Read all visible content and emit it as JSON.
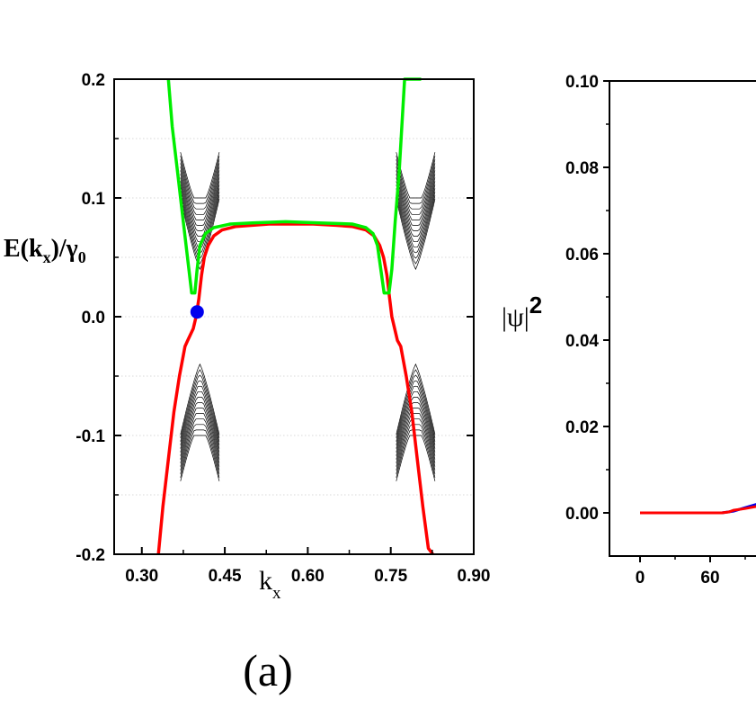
{
  "chart_data": [
    {
      "panel": "(a)",
      "type": "line",
      "xlabel": "k",
      "xlabel_sub": "x",
      "ylabel_parts": {
        "a": "E(k",
        "sub1": "x",
        "b": ")/γ",
        "sub2": "0"
      },
      "xlim": [
        0.25,
        0.9
      ],
      "ylim": [
        -0.2,
        0.2
      ],
      "xticks": [
        0.3,
        0.45,
        0.6,
        0.75,
        0.9
      ],
      "xtick_labels": [
        "0.30",
        "0.45",
        "0.60",
        "0.75",
        "0.90"
      ],
      "yticks": [
        0.2,
        0.1,
        0.0,
        -0.1,
        -0.2
      ],
      "ytick_labels": [
        "0.2",
        "0.1",
        "0.0",
        "-0.1",
        "-0.2"
      ],
      "grid": true,
      "series": [
        {
          "color": "#ff0000",
          "x": [
            0.33,
            0.338,
            0.348,
            0.358,
            0.368,
            0.378,
            0.383,
            0.393,
            0.398,
            0.403,
            0.408,
            0.413,
            0.42,
            0.43,
            0.445,
            0.47,
            0.5,
            0.53,
            0.57,
            0.61,
            0.65,
            0.68,
            0.705,
            0.72,
            0.73,
            0.737,
            0.743,
            0.748,
            0.752,
            0.757,
            0.762,
            0.768,
            0.778,
            0.788,
            0.798,
            0.808,
            0.818,
            0.826
          ],
          "y": [
            -0.2,
            -0.16,
            -0.12,
            -0.08,
            -0.05,
            -0.025,
            -0.02,
            -0.01,
            0.0,
            0.015,
            0.035,
            0.05,
            0.06,
            0.068,
            0.073,
            0.076,
            0.077,
            0.078,
            0.078,
            0.078,
            0.077,
            0.076,
            0.073,
            0.068,
            0.06,
            0.05,
            0.035,
            0.015,
            0.0,
            -0.01,
            -0.02,
            -0.025,
            -0.05,
            -0.08,
            -0.12,
            -0.16,
            -0.195,
            -0.2
          ]
        },
        {
          "color": "#00ee00",
          "x": [
            0.348,
            0.355,
            0.365,
            0.375,
            0.385,
            0.39,
            0.392,
            0.396,
            0.4,
            0.405,
            0.415,
            0.43,
            0.46,
            0.5,
            0.56,
            0.62,
            0.68,
            0.705,
            0.718,
            0.726,
            0.732,
            0.738,
            0.742,
            0.747,
            0.752,
            0.758,
            0.765,
            0.77,
            0.775,
            0.785,
            0.795,
            0.805
          ],
          "y": [
            0.2,
            0.16,
            0.12,
            0.08,
            0.04,
            0.02,
            0.02,
            0.02,
            0.04,
            0.06,
            0.07,
            0.075,
            0.078,
            0.079,
            0.08,
            0.079,
            0.078,
            0.075,
            0.07,
            0.06,
            0.04,
            0.02,
            0.02,
            0.02,
            0.04,
            0.08,
            0.12,
            0.16,
            0.2,
            0.2,
            0.2,
            0.2
          ]
        }
      ],
      "marker": {
        "x": 0.4,
        "y": 0.004,
        "color": "#0000ee"
      }
    },
    {
      "type": "line",
      "ylabel": "|ψ|",
      "ylabel_sup": "2",
      "yticks": [
        0.1,
        0.08,
        0.06,
        0.04,
        0.02,
        0.0
      ],
      "ytick_labels": [
        "0.10",
        "0.08",
        "0.06",
        "0.04",
        "0.02",
        "0.00"
      ],
      "xticks": [
        0,
        60
      ],
      "xtick_labels": [
        "0",
        "60"
      ],
      "ylim": [
        -0.01,
        0.1
      ],
      "series": [
        {
          "color": "#ff0000",
          "x": [
            0,
            20,
            40,
            60,
            70,
            76,
            80,
            90,
            100
          ],
          "y": [
            0.0,
            0.0,
            0.0,
            0.0,
            0.0,
            0.0002,
            0.0006,
            0.001,
            0.0015
          ]
        },
        {
          "color": "#0000ee",
          "x": [
            70,
            80,
            90,
            100
          ],
          "y": [
            0.0,
            0.0004,
            0.0012,
            0.002
          ]
        }
      ]
    }
  ]
}
